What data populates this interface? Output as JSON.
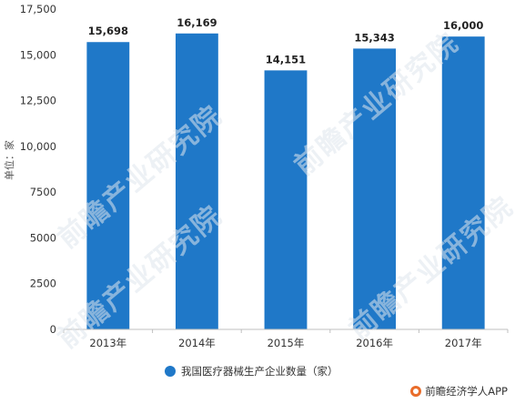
{
  "chart_data": {
    "type": "bar",
    "categories": [
      "2013年",
      "2014年",
      "2015年",
      "2016年",
      "2017年"
    ],
    "series": [
      {
        "name": "我国医疗器械生产企业数量（家）",
        "values": [
          15698,
          16169,
          14151,
          15343,
          16000
        ],
        "color": "#1f78c8"
      }
    ],
    "data_labels": [
      "15,698",
      "16,169",
      "14,151",
      "15,343",
      "16,000"
    ],
    "ylabel": "单位：家",
    "ylim": [
      0,
      17500
    ],
    "yticks": [
      0,
      2500,
      5000,
      7500,
      10000,
      12500,
      15000,
      17500
    ],
    "ytick_labels": [
      "0",
      "2500",
      "5000",
      "7500",
      "10,000",
      "12,500",
      "15,000",
      "17,500"
    ],
    "grid": false,
    "legend_position": "bottom"
  },
  "watermark": {
    "text": "前瞻产业研究院"
  },
  "brand": {
    "text": "前瞻经济学人APP",
    "logo_icon": "qianzhan-logo-icon"
  }
}
